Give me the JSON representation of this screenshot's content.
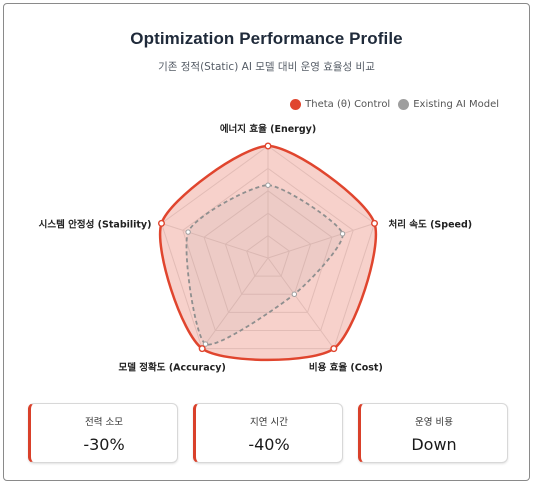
{
  "header": {
    "title": "Optimization Performance Profile",
    "subtitle": "기존 정적(Static) AI 모델 대비 운영 효율성 비교"
  },
  "chart_data": {
    "type": "radar",
    "axes": [
      "에너지 효율 (Energy)",
      "처리 속도 (Speed)",
      "비용 효율 (Cost)",
      "모델 정확도 (Accuracy)",
      "시스템 안정성 (Stability)"
    ],
    "rmax": 100,
    "levels": 5,
    "series": [
      {
        "name": "Theta (θ) Control",
        "color": "#e0452e",
        "fill": "rgba(226,90,70,0.28)",
        "values": [
          100,
          100,
          100,
          100,
          100
        ]
      },
      {
        "name": "Existing AI Model",
        "color": "#9e9e9e",
        "fill": "rgba(158,158,158,0.10)",
        "values": [
          65,
          70,
          40,
          95,
          75
        ]
      }
    ]
  },
  "stats": [
    {
      "label": "전력 소모",
      "value": "-30%"
    },
    {
      "label": "지연 시간",
      "value": "-40%"
    },
    {
      "label": "운영 비용",
      "value": "Down"
    }
  ]
}
